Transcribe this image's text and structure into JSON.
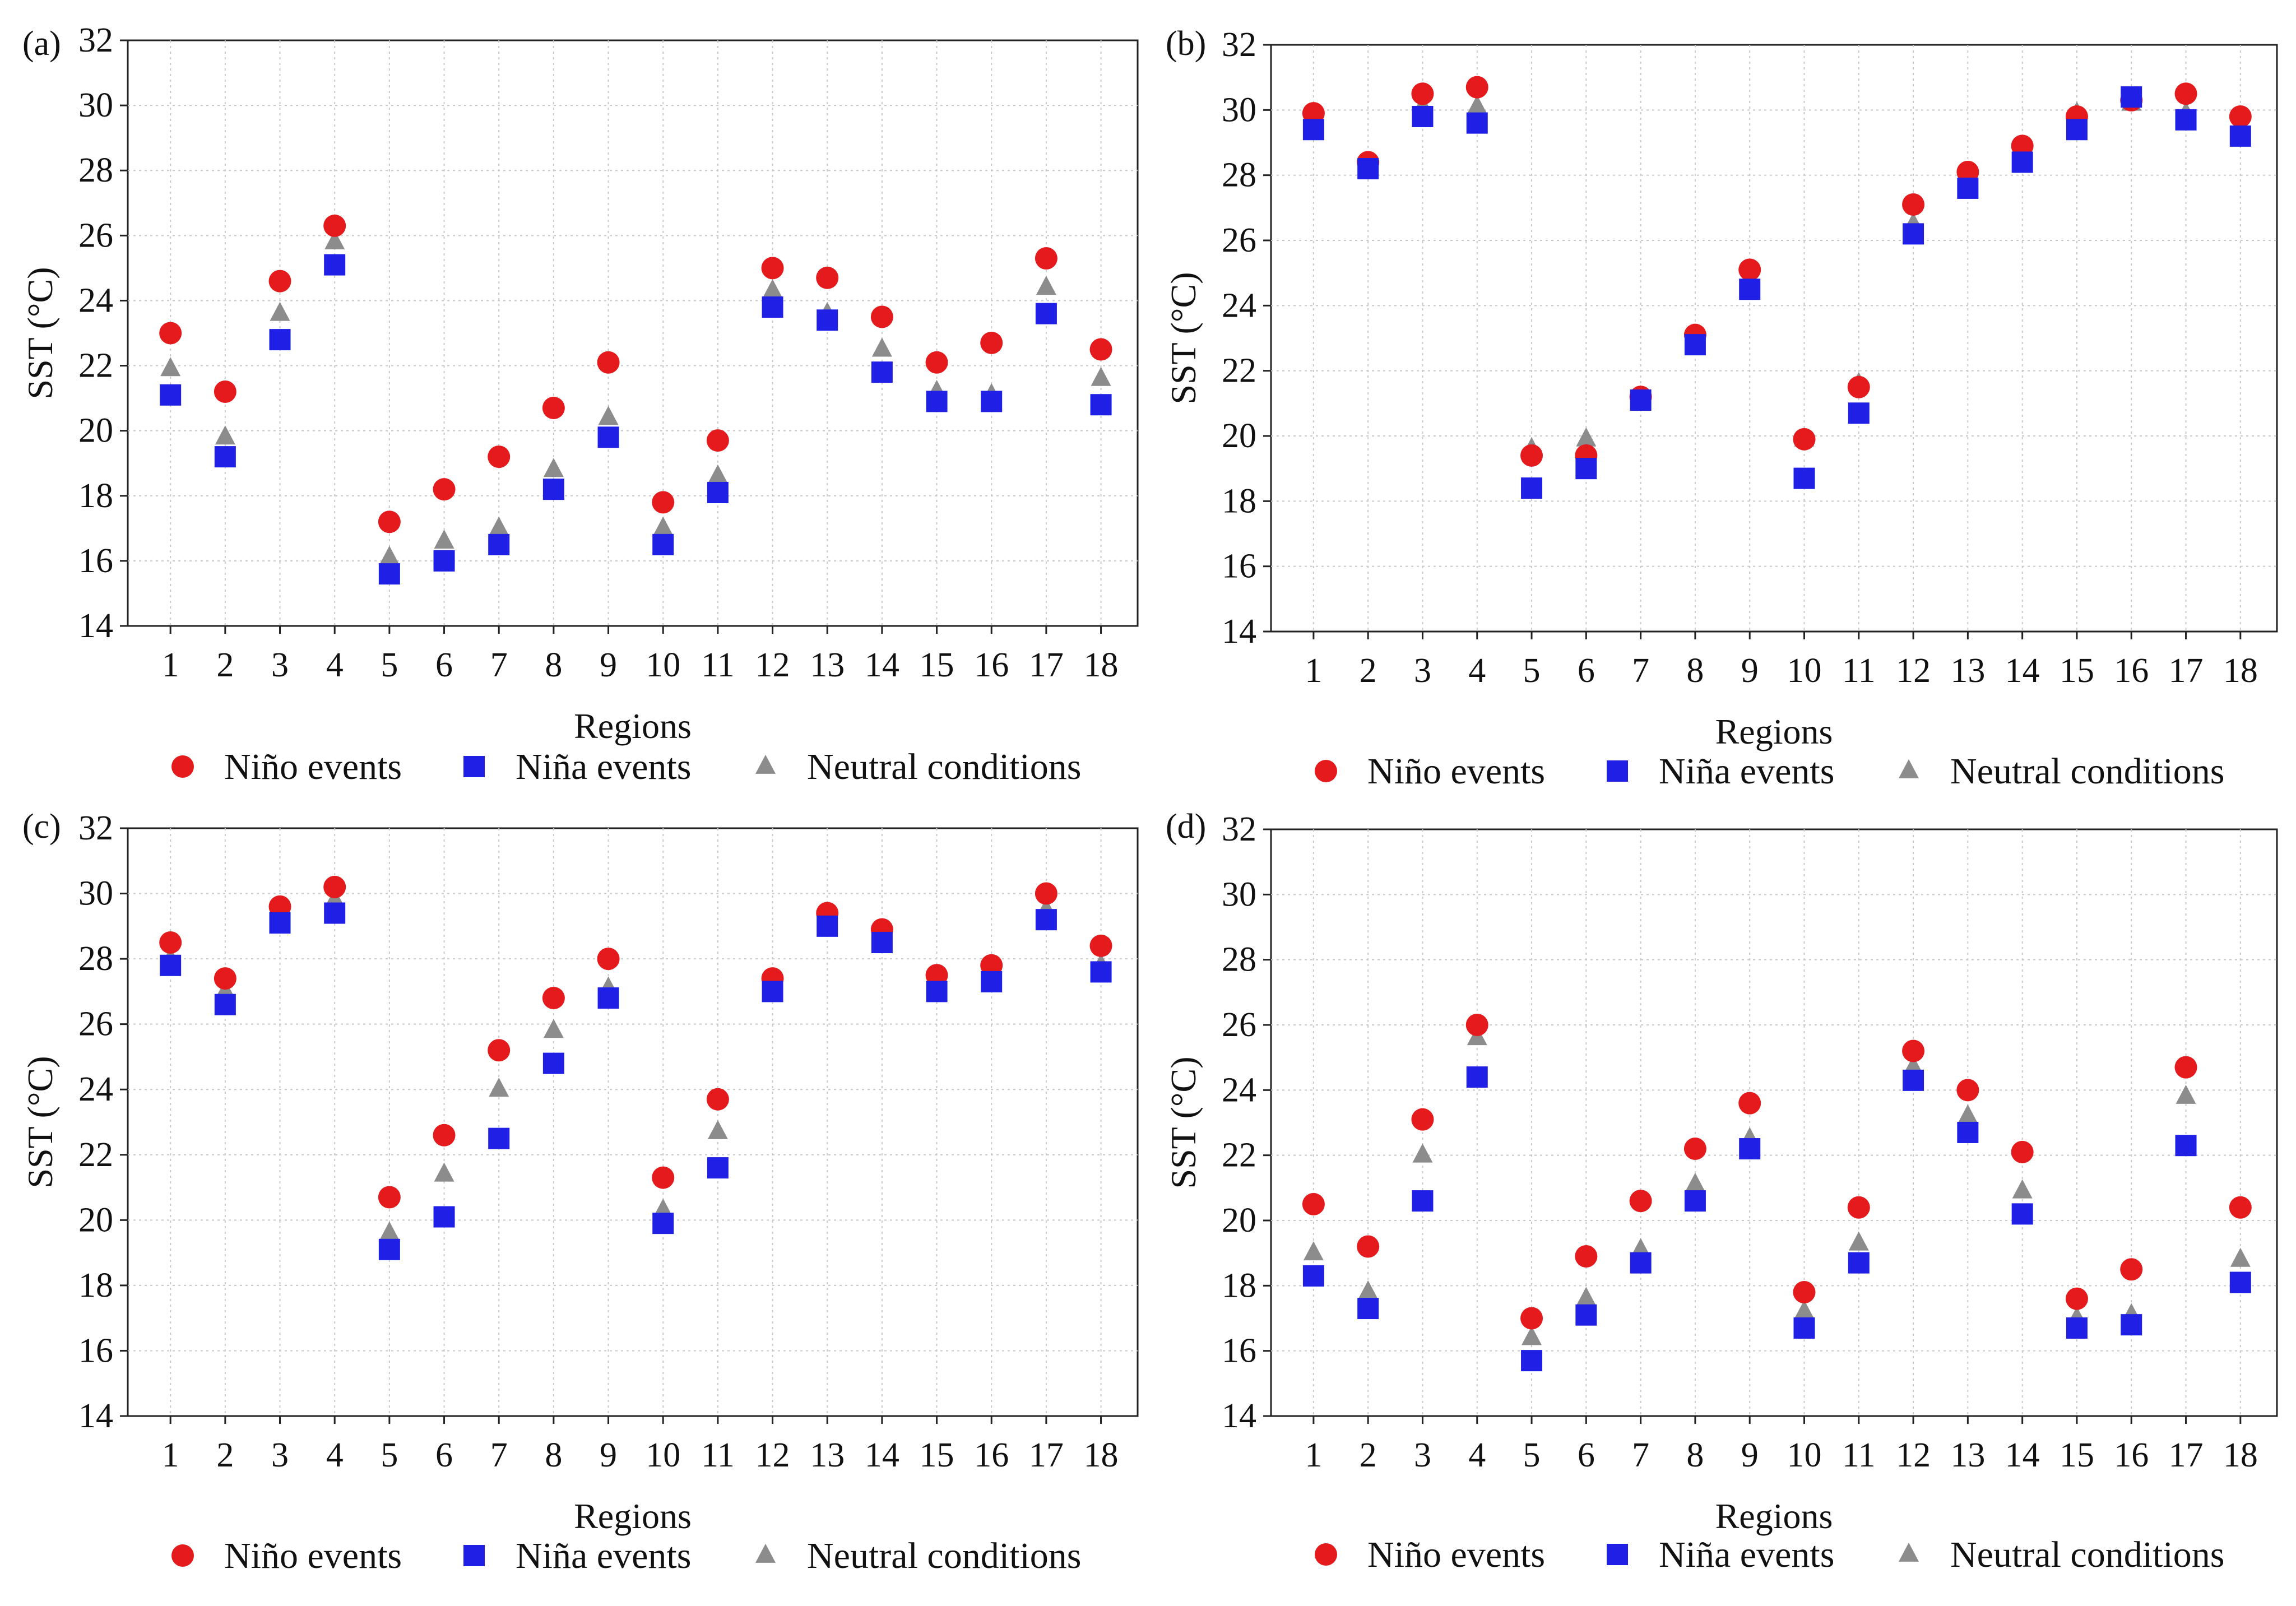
{
  "colors": {
    "nino": "#e41a1c",
    "nina": "#1f1fe6",
    "neutral": "#8c8c8c",
    "grid": "#c8c8c8",
    "axis": "#222222"
  },
  "chart_data": [
    {
      "type": "scatter",
      "panel_label": "(a)",
      "xlabel": "Regions",
      "ylabel": "SST (°C)",
      "ylim": [
        14,
        32
      ],
      "yticks": [
        "14",
        "16",
        "18",
        "20",
        "22",
        "24",
        "26",
        "28",
        "30",
        "32"
      ],
      "categories": [
        "1",
        "2",
        "3",
        "4",
        "5",
        "6",
        "7",
        "8",
        "9",
        "10",
        "11",
        "12",
        "13",
        "14",
        "15",
        "16",
        "17",
        "18"
      ],
      "grid": true,
      "legend": [
        "Niño events",
        "Niña events",
        "Neutral conditions"
      ],
      "series": [
        {
          "name": "Niño events",
          "marker": "circle",
          "values": [
            23.0,
            21.2,
            24.6,
            26.3,
            17.2,
            18.2,
            19.2,
            20.7,
            22.1,
            17.8,
            19.7,
            25.0,
            24.7,
            23.5,
            22.1,
            22.7,
            25.3,
            22.5
          ]
        },
        {
          "name": "Niña events",
          "marker": "square",
          "values": [
            21.1,
            19.2,
            22.8,
            25.1,
            15.6,
            16.0,
            16.5,
            18.2,
            19.8,
            16.5,
            18.1,
            23.8,
            23.4,
            21.8,
            20.9,
            20.9,
            23.6,
            20.8
          ]
        },
        {
          "name": "Neutral conditions",
          "marker": "triangle",
          "values": [
            21.9,
            19.8,
            23.6,
            25.8,
            16.1,
            16.6,
            17.0,
            18.8,
            20.4,
            17.0,
            18.6,
            24.3,
            23.6,
            22.5,
            21.2,
            21.1,
            24.4,
            21.6
          ]
        }
      ]
    },
    {
      "type": "scatter",
      "panel_label": "(b)",
      "xlabel": "Regions",
      "ylabel": "SST (°C)",
      "ylim": [
        14,
        32
      ],
      "yticks": [
        "14",
        "16",
        "18",
        "20",
        "22",
        "24",
        "26",
        "28",
        "30",
        "32"
      ],
      "categories": [
        "1",
        "2",
        "3",
        "4",
        "5",
        "6",
        "7",
        "8",
        "9",
        "10",
        "11",
        "12",
        "13",
        "14",
        "15",
        "16",
        "17",
        "18"
      ],
      "grid": true,
      "legend": [
        "Niño events",
        "Niña events",
        "Neutral conditions"
      ],
      "series": [
        {
          "name": "Niño events",
          "marker": "circle",
          "values": [
            29.9,
            28.4,
            30.5,
            30.7,
            19.4,
            19.4,
            21.2,
            23.1,
            25.1,
            19.9,
            21.5,
            27.1,
            28.1,
            28.9,
            29.8,
            30.3,
            30.5,
            29.8
          ]
        },
        {
          "name": "Niña events",
          "marker": "square",
          "values": [
            29.4,
            28.2,
            29.8,
            29.6,
            18.4,
            19.0,
            21.1,
            22.8,
            24.5,
            18.7,
            20.7,
            26.2,
            27.6,
            28.4,
            29.4,
            30.4,
            29.7,
            29.2
          ]
        },
        {
          "name": "Neutral conditions",
          "marker": "triangle",
          "values": [
            29.6,
            28.3,
            30.1,
            30.1,
            19.6,
            19.9,
            21.2,
            23.0,
            24.7,
            19.9,
            21.6,
            26.5,
            27.9,
            28.6,
            29.9,
            30.2,
            29.9,
            29.5
          ]
        }
      ]
    },
    {
      "type": "scatter",
      "panel_label": "(c)",
      "xlabel": "Regions",
      "ylabel": "SST (°C)",
      "ylim": [
        14,
        32
      ],
      "yticks": [
        "14",
        "16",
        "18",
        "20",
        "22",
        "24",
        "26",
        "28",
        "30",
        "32"
      ],
      "categories": [
        "1",
        "2",
        "3",
        "4",
        "5",
        "6",
        "7",
        "8",
        "9",
        "10",
        "11",
        "12",
        "13",
        "14",
        "15",
        "16",
        "17",
        "18"
      ],
      "grid": true,
      "legend": [
        "Niño events",
        "Niña events",
        "Neutral conditions"
      ],
      "series": [
        {
          "name": "Niño events",
          "marker": "circle",
          "values": [
            28.5,
            27.4,
            29.6,
            30.2,
            20.7,
            22.6,
            25.2,
            26.8,
            28.0,
            21.3,
            23.7,
            27.4,
            29.4,
            28.9,
            27.5,
            27.8,
            30.0,
            28.4
          ]
        },
        {
          "name": "Niña events",
          "marker": "square",
          "values": [
            27.8,
            26.6,
            29.1,
            29.4,
            19.1,
            20.1,
            22.5,
            24.8,
            26.8,
            19.9,
            21.6,
            27.0,
            29.0,
            28.5,
            27.0,
            27.3,
            29.2,
            27.6
          ]
        },
        {
          "name": "Neutral conditions",
          "marker": "triangle",
          "values": [
            28.0,
            27.0,
            29.1,
            29.8,
            19.6,
            21.4,
            24.0,
            25.8,
            27.1,
            20.3,
            22.7,
            26.9,
            29.2,
            28.6,
            27.4,
            27.4,
            29.5,
            27.8
          ]
        }
      ]
    },
    {
      "type": "scatter",
      "panel_label": "(d)",
      "xlabel": "Regions",
      "ylabel": "SST (°C)",
      "ylim": [
        14,
        32
      ],
      "yticks": [
        "14",
        "16",
        "18",
        "20",
        "22",
        "24",
        "26",
        "28",
        "30",
        "32"
      ],
      "categories": [
        "1",
        "2",
        "3",
        "4",
        "5",
        "6",
        "7",
        "8",
        "9",
        "10",
        "11",
        "12",
        "13",
        "14",
        "15",
        "16",
        "17",
        "18"
      ],
      "grid": true,
      "legend": [
        "Niño events",
        "Niña events",
        "Neutral conditions"
      ],
      "series": [
        {
          "name": "Niño events",
          "marker": "circle",
          "values": [
            20.5,
            19.2,
            23.1,
            26.0,
            17.0,
            18.9,
            20.6,
            22.2,
            23.6,
            17.8,
            20.4,
            25.2,
            24.0,
            22.1,
            17.6,
            18.5,
            24.7,
            20.4
          ]
        },
        {
          "name": "Niña events",
          "marker": "square",
          "values": [
            18.3,
            17.3,
            20.6,
            24.4,
            15.7,
            17.1,
            18.7,
            20.6,
            22.2,
            16.7,
            18.7,
            24.3,
            22.7,
            20.2,
            16.7,
            16.8,
            22.3,
            18.1
          ]
        },
        {
          "name": "Neutral conditions",
          "marker": "triangle",
          "values": [
            19.0,
            17.8,
            22.0,
            25.6,
            16.4,
            17.6,
            19.1,
            21.1,
            22.5,
            17.2,
            19.3,
            24.7,
            23.2,
            20.9,
            17.0,
            17.1,
            23.8,
            18.8
          ]
        }
      ]
    }
  ]
}
